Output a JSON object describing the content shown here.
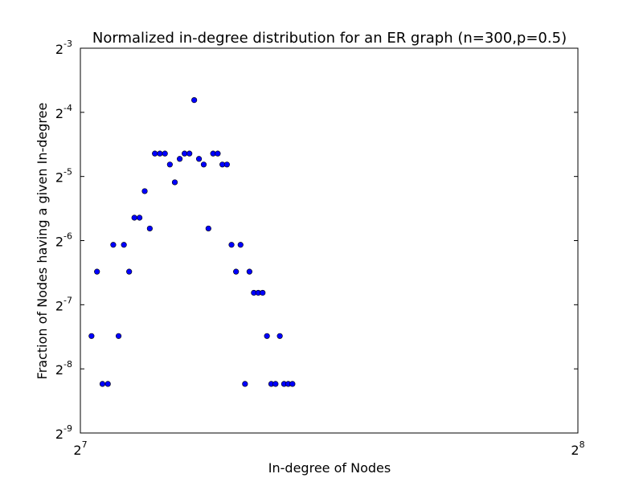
{
  "chart_data": {
    "type": "scatter",
    "title": "Normalized in-degree distribution for an ER graph (n=300,p=0.5)",
    "xlabel": "In-degree of Nodes",
    "ylabel": "Fraction of Nodes having a given In-degree",
    "x_scale": "log2",
    "y_scale": "log2",
    "xlim": [
      128,
      256
    ],
    "ylim": [
      0.001953125,
      0.125
    ],
    "x_ticks": [
      {
        "value": 128,
        "base": "2",
        "exp": "7"
      },
      {
        "value": 256,
        "base": "2",
        "exp": "8"
      }
    ],
    "y_ticks": [
      {
        "value": 0.125,
        "base": "2",
        "exp": "-3"
      },
      {
        "value": 0.0625,
        "base": "2",
        "exp": "-4"
      },
      {
        "value": 0.03125,
        "base": "2",
        "exp": "-5"
      },
      {
        "value": 0.015625,
        "base": "2",
        "exp": "-6"
      },
      {
        "value": 0.0078125,
        "base": "2",
        "exp": "-7"
      },
      {
        "value": 0.00390625,
        "base": "2",
        "exp": "-8"
      },
      {
        "value": 0.001953125,
        "base": "2",
        "exp": "-9"
      }
    ],
    "grid": false,
    "marker_color": "#0000ff",
    "marker_edge_color": "#000000",
    "series": [
      {
        "x": [
          130,
          131,
          132,
          133,
          134,
          135,
          136,
          137,
          138,
          139,
          140,
          141,
          142,
          143,
          144,
          145,
          146,
          147,
          148,
          149,
          150,
          151,
          152,
          153,
          154,
          155,
          156,
          157,
          158,
          159,
          160,
          161,
          162,
          163,
          164,
          165,
          166,
          167,
          168,
          169,
          170,
          171,
          172
        ],
        "y": [
          0.00557,
          0.01117,
          0.00332,
          0.00332,
          0.01493,
          0.00557,
          0.01493,
          0.01117,
          0.02001,
          0.02001,
          0.02667,
          0.01781,
          0.04003,
          0.04003,
          0.04003,
          0.03556,
          0.02934,
          0.03779,
          0.04003,
          0.04003,
          0.07134,
          0.03779,
          0.03556,
          0.01781,
          0.04003,
          0.04003,
          0.03556,
          0.03556,
          0.01493,
          0.01117,
          0.01493,
          0.00332,
          0.01117,
          0.00889,
          0.00889,
          0.00889,
          0.00557,
          0.00332,
          0.00332,
          0.00557,
          0.00332,
          0.00332,
          0.00332
        ]
      }
    ]
  }
}
